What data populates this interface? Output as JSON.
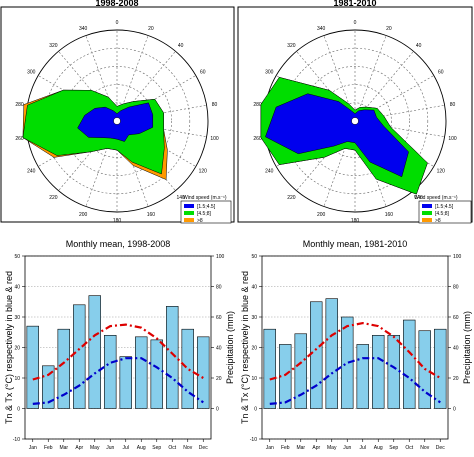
{
  "chart_data": [
    {
      "type": "radar",
      "title": "1998-2008",
      "angle_labels": [
        "0",
        "20",
        "40",
        "60",
        "80",
        "100",
        "120",
        "140",
        "160",
        "180",
        "200",
        "220",
        "240",
        "260",
        "280",
        "300",
        "320",
        "340"
      ],
      "legend_title": "Wind speed",
      "legend_unit": "(m.s⁻¹)",
      "legend_entries": [
        "[1.5;4.5[",
        "[4.5;8]",
        ">8"
      ],
      "series": [
        {
          "name": "[1.5;4.5[",
          "color": "#0000ee",
          "angles": [
            0,
            20,
            40,
            60,
            80,
            100,
            120,
            140,
            160,
            180,
            200,
            220,
            240,
            260,
            280,
            300,
            320,
            340
          ],
          "values": [
            0.02,
            0.03,
            0.05,
            0.1,
            0.1,
            0.1,
            0.07,
            0.05,
            0.06,
            0.05,
            0.05,
            0.06,
            0.09,
            0.11,
            0.09,
            0.07,
            0.05,
            0.03
          ]
        },
        {
          "name": "[4.5;8]",
          "color": "#00dd00",
          "angles": [
            0,
            20,
            40,
            60,
            80,
            100,
            120,
            140,
            160,
            180,
            200,
            220,
            240,
            260,
            280,
            300,
            320,
            340
          ],
          "values": [
            0.02,
            0.02,
            0.02,
            0.02,
            0.03,
            0.03,
            0.08,
            0.14,
            0.06,
            0.03,
            0.03,
            0.05,
            0.1,
            0.23,
            0.16,
            0.1,
            0.06,
            0.04
          ]
        },
        {
          "name": ">8",
          "color": "#ff9900",
          "angles": [
            0,
            20,
            40,
            60,
            80,
            100,
            120,
            140,
            160,
            180,
            200,
            220,
            240,
            260,
            280,
            300,
            320,
            340
          ],
          "values": [
            0,
            0,
            0,
            0,
            0,
            0,
            0.01,
            0.02,
            0.01,
            0,
            0,
            0,
            0.01,
            0.02,
            0.01,
            0,
            0,
            0
          ]
        }
      ]
    },
    {
      "type": "radar",
      "title": "1981-2010",
      "angle_labels": [
        "0",
        "20",
        "40",
        "60",
        "80",
        "100",
        "120",
        "140",
        "160",
        "180",
        "200",
        "220",
        "240",
        "260",
        "280",
        "300",
        "320",
        "340"
      ],
      "legend_title": "Wind speed",
      "legend_unit": "(m.s⁻¹)",
      "legend_entries": [
        "[1.5;4.5[",
        "[4.5;8]",
        ">8"
      ],
      "series": [
        {
          "name": "[1.5;4.5[",
          "color": "#0000ee",
          "angles": [
            0,
            20,
            40,
            60,
            80,
            100,
            120,
            140,
            160,
            180,
            200,
            220,
            240,
            260,
            280,
            300,
            320,
            340
          ],
          "values": [
            0.02,
            0.03,
            0.04,
            0.06,
            0.06,
            0.08,
            0.17,
            0.2,
            0.12,
            0.06,
            0.06,
            0.09,
            0.18,
            0.25,
            0.22,
            0.15,
            0.07,
            0.03
          ]
        },
        {
          "name": "[4.5;8]",
          "color": "#00dd00",
          "angles": [
            0,
            20,
            40,
            60,
            80,
            100,
            120,
            140,
            160,
            180,
            200,
            220,
            240,
            260,
            280,
            300,
            320,
            340
          ],
          "values": [
            0.01,
            0.01,
            0.01,
            0.01,
            0.02,
            0.02,
            0.06,
            0.1,
            0.05,
            0.02,
            0.02,
            0.04,
            0.06,
            0.1,
            0.12,
            0.09,
            0.04,
            0.02
          ]
        },
        {
          "name": ">8",
          "color": "#ff9900",
          "angles": [
            0,
            20,
            40,
            60,
            80,
            100,
            120,
            140,
            160,
            180,
            200,
            220,
            240,
            260,
            280,
            300,
            320,
            340
          ],
          "values": [
            0,
            0,
            0,
            0,
            0,
            0,
            0,
            0.01,
            0,
            0,
            0,
            0,
            0,
            0,
            0.01,
            0,
            0,
            0
          ]
        }
      ]
    },
    {
      "type": "bar+line",
      "title": "Monthly mean, 1998-2008",
      "categories": [
        "Jan",
        "Feb",
        "Mar",
        "Apr",
        "May",
        "Jun",
        "Jul",
        "Aug",
        "Sep",
        "Oct",
        "Nov",
        "Dec"
      ],
      "ylabel_left": "Tn & Tx (°C) respectively in blue & red",
      "ylabel_right": "Precipitation (mm)",
      "y_left_ticks": [
        "-10",
        "0",
        "10",
        "20",
        "30",
        "40",
        "50"
      ],
      "y_right_ticks": [
        "0",
        "20",
        "40",
        "60",
        "80",
        "100"
      ],
      "ylim_left": [
        -10,
        50
      ],
      "ylim_right": [
        -20,
        100
      ],
      "grid": true,
      "series": [
        {
          "name": "Precipitation",
          "axis": "right",
          "kind": "bar",
          "color": "#87ceeb",
          "values": [
            54,
            28,
            52,
            68,
            74,
            48,
            34,
            47,
            45,
            67,
            52,
            47
          ]
        },
        {
          "name": "Tx",
          "axis": "left",
          "kind": "line",
          "color": "#dd0000",
          "values": [
            9.5,
            11,
            15,
            19.5,
            24,
            27,
            27.5,
            26.5,
            23,
            18,
            13,
            10
          ]
        },
        {
          "name": "Tn",
          "axis": "left",
          "kind": "line",
          "color": "#0000cc",
          "values": [
            1.5,
            2,
            4.5,
            7.5,
            11.5,
            15,
            16.5,
            16.5,
            13.5,
            10,
            5.5,
            2
          ]
        }
      ]
    },
    {
      "type": "bar+line",
      "title": "Monthly mean, 1981-2010",
      "categories": [
        "Jan",
        "Feb",
        "Mar",
        "Apr",
        "May",
        "Jun",
        "Jul",
        "Aug",
        "Sep",
        "Oct",
        "Nov",
        "Dec"
      ],
      "ylabel_left": "Tn & Tx (°C) respectively in blue & red",
      "ylabel_right": "Precipitation (mm)",
      "y_left_ticks": [
        "-10",
        "0",
        "10",
        "20",
        "30",
        "40",
        "50"
      ],
      "y_right_ticks": [
        "0",
        "20",
        "40",
        "60",
        "80",
        "100"
      ],
      "ylim_left": [
        -10,
        50
      ],
      "ylim_right": [
        -20,
        100
      ],
      "grid": true,
      "series": [
        {
          "name": "Precipitation",
          "axis": "right",
          "kind": "bar",
          "color": "#87ceeb",
          "values": [
            52,
            42,
            49,
            70,
            72,
            60,
            42,
            48,
            48,
            58,
            51,
            52
          ]
        },
        {
          "name": "Tx",
          "axis": "left",
          "kind": "line",
          "color": "#dd0000",
          "values": [
            9.5,
            11,
            15,
            19.5,
            24,
            27,
            28,
            27,
            23.5,
            18.5,
            13,
            10
          ]
        },
        {
          "name": "Tn",
          "axis": "left",
          "kind": "line",
          "color": "#0000cc",
          "values": [
            1.5,
            2,
            4.5,
            7.5,
            11.5,
            15,
            16.5,
            16.5,
            13.5,
            10,
            5.5,
            2
          ]
        }
      ]
    }
  ]
}
